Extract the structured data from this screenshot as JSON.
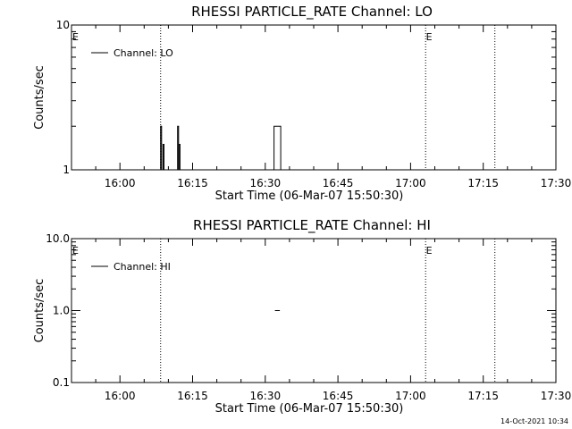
{
  "footer": {
    "timestamp": "14-Oct-2021 10:34"
  },
  "chart_data": [
    {
      "type": "line",
      "title": "RHESSI PARTICLE_RATE Channel: LO",
      "xlabel": "Start Time (06-Mar-07 15:50:30)",
      "ylabel": "Counts/sec",
      "x_ticks": [
        "16:00",
        "16:15",
        "16:30",
        "16:45",
        "17:00",
        "17:15",
        "17:30"
      ],
      "x_tick_minutes": [
        0,
        15,
        30,
        45,
        60,
        75,
        90
      ],
      "xlim_minutes": [
        -10,
        90
      ],
      "y_scale": "log",
      "ylim": [
        1,
        10
      ],
      "y_ticks": [
        1,
        10
      ],
      "y_tick_labels": [
        "1",
        "10"
      ],
      "legend": {
        "entries": [
          "Channel: LO"
        ],
        "position": "top-left"
      },
      "markers": [
        {
          "label": "E",
          "minute": -10
        },
        {
          "label": "E",
          "minute": 63
        }
      ],
      "vlines_minutes": [
        8.4,
        63.1,
        77.4
      ],
      "series": [
        {
          "name": "Channel: LO",
          "segments": [
            [
              [
                8.4,
                1
              ],
              [
                8.4,
                2
              ],
              [
                8.6,
                2
              ],
              [
                8.6,
                1
              ]
            ],
            [
              [
                8.9,
                1
              ],
              [
                8.9,
                1.5
              ],
              [
                9.1,
                1.5
              ],
              [
                9.1,
                1
              ]
            ],
            [
              [
                11.9,
                1
              ],
              [
                11.9,
                2
              ],
              [
                12.1,
                2
              ],
              [
                12.1,
                1
              ]
            ],
            [
              [
                12.2,
                1
              ],
              [
                12.2,
                1.5
              ],
              [
                12.4,
                1.5
              ],
              [
                12.4,
                1
              ]
            ],
            [
              [
                31.8,
                1
              ],
              [
                31.8,
                2
              ],
              [
                33.2,
                2
              ],
              [
                33.2,
                1
              ]
            ]
          ]
        }
      ]
    },
    {
      "type": "line",
      "title": "RHESSI PARTICLE_RATE Channel: HI",
      "xlabel": "Start Time (06-Mar-07 15:50:30)",
      "ylabel": "Counts/sec",
      "x_ticks": [
        "16:00",
        "16:15",
        "16:30",
        "16:45",
        "17:00",
        "17:15",
        "17:30"
      ],
      "x_tick_minutes": [
        0,
        15,
        30,
        45,
        60,
        75,
        90
      ],
      "xlim_minutes": [
        -10,
        90
      ],
      "y_scale": "log",
      "ylim": [
        0.1,
        10
      ],
      "y_ticks": [
        0.1,
        1,
        10
      ],
      "y_tick_labels": [
        "0.1",
        "1.0",
        "10.0"
      ],
      "legend": {
        "entries": [
          "Channel: HI"
        ],
        "position": "top-left"
      },
      "markers": [
        {
          "label": "E",
          "minute": -10
        },
        {
          "label": "E",
          "minute": 63
        }
      ],
      "vlines_minutes": [
        8.4,
        63.1,
        77.4
      ],
      "series": [
        {
          "name": "Channel: HI",
          "segments": [
            [
              [
                32.0,
                1
              ],
              [
                33.0,
                1
              ]
            ]
          ]
        }
      ]
    }
  ]
}
